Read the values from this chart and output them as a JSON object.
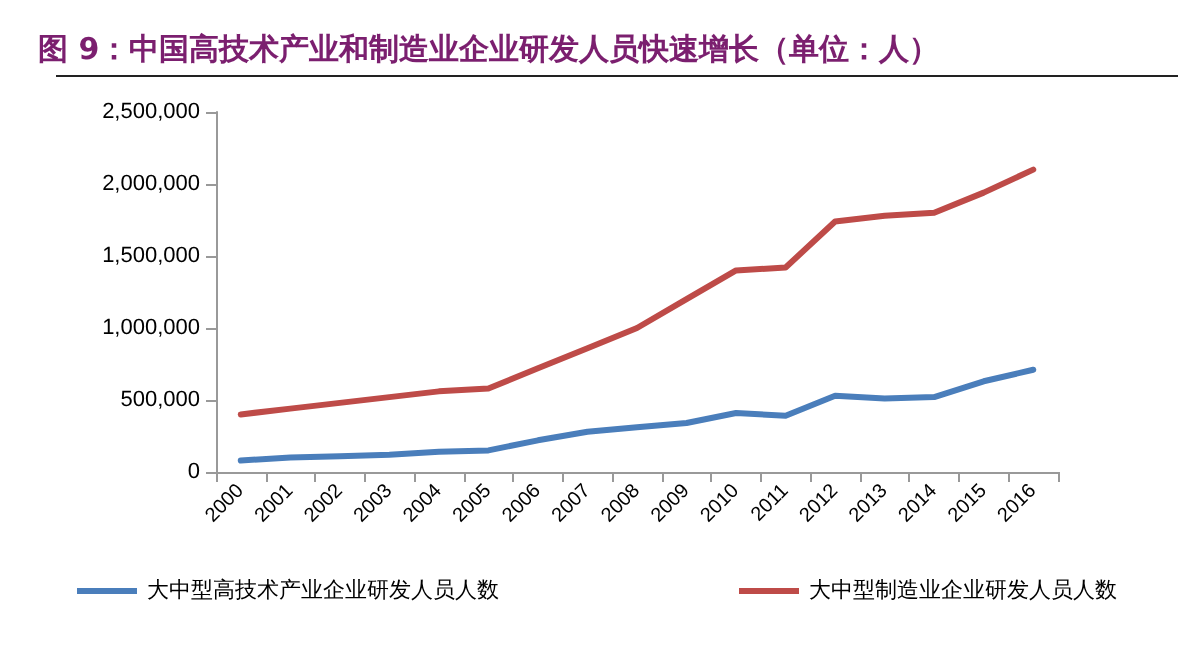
{
  "chart_data": {
    "type": "line",
    "title": "图 9：中国高技术产业和制造业企业研发人员快速增长（单位：人）",
    "categories": [
      "2000",
      "2001",
      "2002",
      "2003",
      "2004",
      "2005",
      "2006",
      "2007",
      "2008",
      "2009",
      "2010",
      "2011",
      "2012",
      "2013",
      "2014",
      "2015",
      "2016"
    ],
    "series": [
      {
        "name": "大中型高技术产业企业研发人员人数",
        "color": "#4a7ebb",
        "values": [
          80000,
          100000,
          110000,
          120000,
          140000,
          150000,
          220000,
          280000,
          310000,
          340000,
          410000,
          390000,
          530000,
          510000,
          520000,
          630000,
          710000
        ]
      },
      {
        "name": "大中型制造业企业研发人员人数",
        "color": "#be4b48",
        "values": [
          400000,
          440000,
          480000,
          520000,
          560000,
          580000,
          720000,
          860000,
          1000000,
          1200000,
          1400000,
          1420000,
          1740000,
          1780000,
          1800000,
          1940000,
          2100000
        ]
      }
    ],
    "ylim": [
      0,
      2500000
    ],
    "yticks": [
      0,
      {
        "value": 500000,
        "label": "500,000"
      },
      {
        "value": 1000000,
        "label": "1,000,000"
      },
      {
        "value": 1500000,
        "label": "1,500,000"
      },
      {
        "value": 2000000,
        "label": "2,000,000"
      },
      {
        "value": 2500000,
        "label": "2,500,000"
      }
    ],
    "grid": false,
    "legend": "bottom",
    "marker": "none",
    "line_style": "solid"
  }
}
